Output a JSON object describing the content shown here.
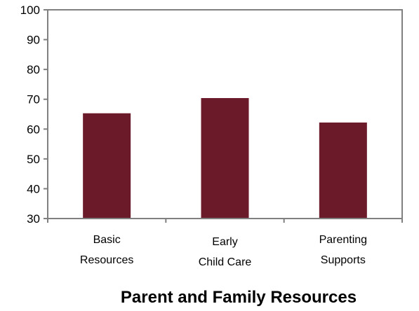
{
  "chart_data": {
    "type": "bar",
    "title": "Parent and Family Resources",
    "categories": [
      [
        "Basic",
        "Resources"
      ],
      [
        "Early",
        "Child Care"
      ],
      [
        "Parenting",
        "Supports"
      ]
    ],
    "values": [
      65.3,
      70.4,
      62.2
    ],
    "ylim": [
      30,
      100
    ],
    "yticks": [
      30,
      40,
      50,
      60,
      70,
      80,
      90,
      100
    ],
    "xlabel": "",
    "ylabel": "",
    "grid": false,
    "legend": "none",
    "bar_color": "#6b1a29",
    "axis_color": "#808080"
  }
}
